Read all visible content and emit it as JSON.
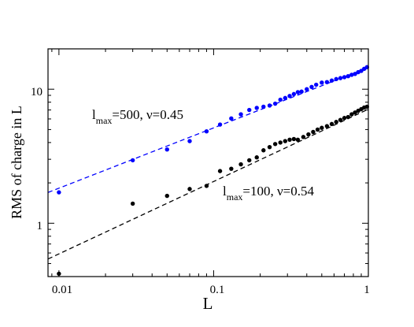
{
  "chart_data": {
    "type": "scatter",
    "xscale": "log",
    "yscale": "log",
    "xlim": [
      0.0085,
      1.0
    ],
    "ylim": [
      0.4,
      20
    ],
    "xlabel": "L",
    "ylabel": "RMS of charge in L",
    "x_ticks": [
      0.01,
      0.1,
      1
    ],
    "x_tick_labels": [
      "0.01",
      "0.1",
      "1"
    ],
    "y_ticks": [
      1,
      10
    ],
    "y_tick_labels": [
      "1",
      "10"
    ],
    "grid": false,
    "series": [
      {
        "color": "#0000ff",
        "points": [
          [
            0.01,
            1.7
          ],
          [
            0.03,
            2.95
          ],
          [
            0.05,
            3.55
          ],
          [
            0.07,
            4.1
          ],
          [
            0.09,
            4.85
          ],
          [
            0.11,
            5.45
          ],
          [
            0.13,
            6.05
          ],
          [
            0.15,
            6.5
          ],
          [
            0.17,
            7.0
          ],
          [
            0.19,
            7.25
          ],
          [
            0.21,
            7.4
          ],
          [
            0.23,
            7.55
          ],
          [
            0.25,
            7.8
          ],
          [
            0.27,
            8.35
          ],
          [
            0.29,
            8.6
          ],
          [
            0.31,
            8.9
          ],
          [
            0.33,
            9.2
          ],
          [
            0.35,
            9.5
          ],
          [
            0.37,
            9.6
          ],
          [
            0.4,
            10.0
          ],
          [
            0.43,
            10.4
          ],
          [
            0.46,
            10.8
          ],
          [
            0.5,
            11.2
          ],
          [
            0.54,
            11.3
          ],
          [
            0.58,
            11.6
          ],
          [
            0.62,
            11.9
          ],
          [
            0.66,
            12.1
          ],
          [
            0.7,
            12.3
          ],
          [
            0.74,
            12.5
          ],
          [
            0.78,
            12.8
          ],
          [
            0.82,
            13.0
          ],
          [
            0.86,
            13.4
          ],
          [
            0.9,
            13.7
          ],
          [
            0.94,
            14.2
          ],
          [
            0.98,
            14.6
          ]
        ],
        "fit": {
          "nu": 0.45,
          "intercept_at_1": 14.5
        }
      },
      {
        "color": "#000000",
        "points": [
          [
            0.01,
            0.42
          ],
          [
            0.03,
            1.4
          ],
          [
            0.05,
            1.6
          ],
          [
            0.07,
            1.8
          ],
          [
            0.09,
            1.9
          ],
          [
            0.11,
            2.45
          ],
          [
            0.13,
            2.55
          ],
          [
            0.15,
            2.75
          ],
          [
            0.17,
            2.95
          ],
          [
            0.19,
            3.1
          ],
          [
            0.21,
            3.5
          ],
          [
            0.23,
            3.7
          ],
          [
            0.25,
            3.9
          ],
          [
            0.27,
            4.0
          ],
          [
            0.29,
            4.1
          ],
          [
            0.31,
            4.2
          ],
          [
            0.33,
            4.25
          ],
          [
            0.35,
            4.2
          ],
          [
            0.38,
            4.4
          ],
          [
            0.41,
            4.6
          ],
          [
            0.44,
            4.8
          ],
          [
            0.47,
            5.0
          ],
          [
            0.5,
            5.15
          ],
          [
            0.54,
            5.3
          ],
          [
            0.58,
            5.5
          ],
          [
            0.62,
            5.7
          ],
          [
            0.66,
            5.9
          ],
          [
            0.7,
            6.1
          ],
          [
            0.74,
            6.2
          ],
          [
            0.78,
            6.5
          ],
          [
            0.82,
            6.7
          ],
          [
            0.86,
            6.9
          ],
          [
            0.9,
            7.1
          ],
          [
            0.94,
            7.3
          ],
          [
            0.98,
            7.4
          ]
        ],
        "fit": {
          "nu": 0.54,
          "intercept_at_1": 7.1
        }
      }
    ],
    "annotations": [
      {
        "main": "l",
        "sub": "max",
        "rest": "=500,  ν=0.45"
      },
      {
        "main": "l",
        "sub": "max",
        "rest": "=100,  ν=0.54"
      }
    ]
  }
}
